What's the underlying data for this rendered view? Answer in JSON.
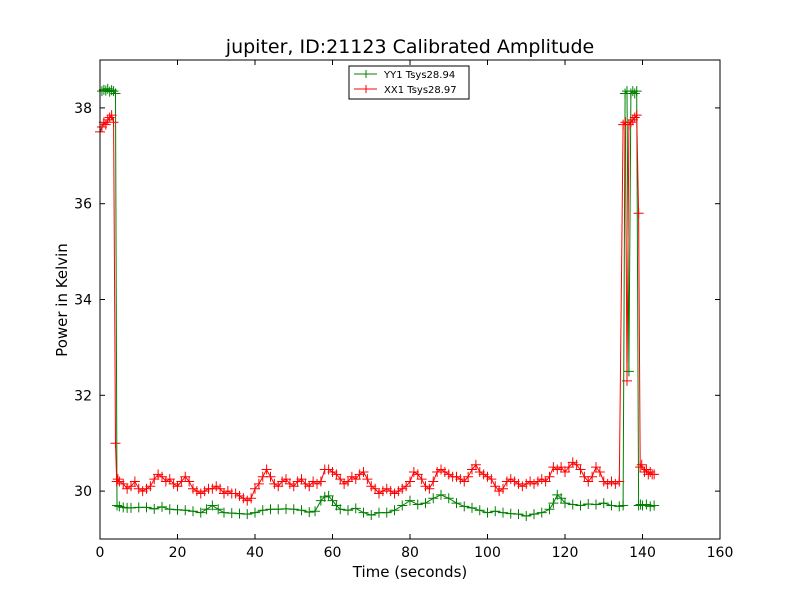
{
  "chart_data": {
    "type": "line",
    "title": "jupiter, ID:21123 Calibrated Amplitude",
    "xlabel": "Time (seconds)",
    "ylabel": "Power in Kelvin",
    "xlim": [
      0,
      160
    ],
    "ylim": [
      29,
      39
    ],
    "xticks": [
      "0",
      "20",
      "40",
      "60",
      "80",
      "100",
      "120",
      "140",
      "160"
    ],
    "yticks": [
      "30",
      "32",
      "34",
      "36",
      "38"
    ],
    "grid": false,
    "legend_position": "top-center",
    "series": [
      {
        "name": "YY1 Tsys28.94",
        "color": "#008000",
        "marker": "+",
        "x": [
          0.5,
          1,
          1.5,
          2,
          2.5,
          3,
          3.5,
          4,
          4.4,
          5,
          6,
          7,
          8,
          10,
          12,
          14,
          16,
          18,
          20,
          22,
          24,
          26,
          27.5,
          29,
          30.5,
          32,
          34,
          36,
          38,
          40,
          42,
          44,
          46,
          48,
          50,
          52,
          54,
          55.5,
          57,
          58,
          59,
          60,
          61,
          62,
          64,
          66,
          68,
          70,
          72,
          74,
          76,
          78,
          80,
          82,
          84,
          86,
          88,
          90,
          92,
          94,
          96,
          98,
          100,
          102,
          104,
          106,
          108,
          110,
          112,
          114,
          116,
          117,
          118,
          119,
          120,
          122,
          124,
          126,
          128,
          130,
          132,
          134,
          135,
          135.5,
          136,
          136.5,
          137,
          137.5,
          138,
          138.5,
          139,
          139.5,
          140,
          141,
          142,
          143
        ],
        "values": [
          38.35,
          38.38,
          38.36,
          38.4,
          38.34,
          38.37,
          38.35,
          38.3,
          29.7,
          29.68,
          29.66,
          29.65,
          29.65,
          29.66,
          29.66,
          29.63,
          29.67,
          29.62,
          29.61,
          29.6,
          29.58,
          29.55,
          29.62,
          29.7,
          29.62,
          29.55,
          29.54,
          29.53,
          29.52,
          29.55,
          29.6,
          29.62,
          29.62,
          29.63,
          29.62,
          29.6,
          29.56,
          29.58,
          29.8,
          29.88,
          29.9,
          29.8,
          29.7,
          29.62,
          29.6,
          29.64,
          29.55,
          29.5,
          29.55,
          29.55,
          29.6,
          29.7,
          29.8,
          29.72,
          29.75,
          29.85,
          29.92,
          29.85,
          29.75,
          29.68,
          29.65,
          29.6,
          29.55,
          29.58,
          29.55,
          29.53,
          29.52,
          29.48,
          29.52,
          29.55,
          29.62,
          29.75,
          29.92,
          29.85,
          29.75,
          29.72,
          29.7,
          29.73,
          29.72,
          29.75,
          29.7,
          29.68,
          29.7,
          38.3,
          38.35,
          32.5,
          38.3,
          38.35,
          38.3,
          38.35,
          29.7,
          29.72,
          29.7,
          29.72,
          29.68,
          29.7
        ]
      },
      {
        "name": "XX1 Tsys28.97",
        "color": "#ff0000",
        "marker": "+",
        "x": [
          0,
          0.5,
          1,
          1.5,
          2,
          2.5,
          3,
          3.5,
          4,
          4.3,
          4.6,
          5,
          6,
          7,
          8,
          9,
          10,
          11,
          12,
          13,
          14,
          15,
          16,
          17,
          18,
          19,
          20,
          21,
          22,
          23,
          24,
          25,
          26,
          27,
          28,
          29,
          30,
          31,
          32,
          33,
          34,
          35,
          36,
          37,
          38,
          39,
          40,
          41,
          42,
          43,
          44,
          45,
          46,
          47,
          48,
          49,
          50,
          51,
          52,
          53,
          54,
          55,
          56,
          57,
          58,
          59,
          60,
          61,
          62,
          63,
          64,
          65,
          66,
          67,
          68,
          69,
          70,
          71,
          72,
          73,
          74,
          75,
          76,
          77,
          78,
          79,
          80,
          81,
          82,
          83,
          84,
          85,
          86,
          87,
          88,
          89,
          90,
          91,
          92,
          93,
          94,
          95,
          96,
          97,
          98,
          99,
          100,
          101,
          102,
          103,
          104,
          105,
          106,
          107,
          108,
          109,
          110,
          111,
          112,
          113,
          114,
          115,
          116,
          117,
          118,
          119,
          120,
          121,
          122,
          123,
          124,
          125,
          126,
          127,
          128,
          129,
          130,
          131,
          132,
          133,
          134,
          135,
          135.6,
          136,
          136.5,
          137,
          137.5,
          138,
          138.5,
          139,
          139.4,
          139.8,
          140.5,
          141,
          141.5,
          142,
          142.5,
          143
        ],
        "values": [
          37.5,
          37.6,
          37.7,
          37.65,
          37.75,
          37.8,
          37.85,
          37.7,
          31.0,
          30.2,
          30.25,
          30.2,
          30.15,
          30.05,
          30.1,
          30.2,
          30.05,
          30.0,
          30.05,
          30.1,
          30.25,
          30.35,
          30.3,
          30.2,
          30.25,
          30.15,
          30.1,
          30.2,
          30.3,
          30.2,
          30.05,
          30.0,
          29.95,
          30.0,
          30.05,
          30.05,
          30.1,
          30.05,
          29.95,
          30.0,
          29.95,
          29.95,
          29.9,
          29.85,
          29.8,
          29.85,
          30.05,
          30.15,
          30.3,
          30.45,
          30.3,
          30.15,
          30.1,
          30.2,
          30.25,
          30.15,
          30.1,
          30.2,
          30.25,
          30.15,
          30.1,
          30.2,
          30.15,
          30.2,
          30.45,
          30.45,
          30.4,
          30.35,
          30.25,
          30.15,
          30.2,
          30.3,
          30.25,
          30.35,
          30.4,
          30.25,
          30.1,
          30.05,
          29.95,
          30.0,
          30.05,
          30.0,
          29.95,
          30.0,
          30.05,
          30.1,
          30.2,
          30.4,
          30.35,
          30.25,
          30.1,
          30.05,
          30.2,
          30.4,
          30.45,
          30.4,
          30.35,
          30.3,
          30.3,
          30.25,
          30.2,
          30.3,
          30.45,
          30.55,
          30.4,
          30.35,
          30.3,
          30.25,
          30.1,
          30.0,
          30.05,
          30.2,
          30.25,
          30.2,
          30.15,
          30.1,
          30.15,
          30.2,
          30.15,
          30.2,
          30.25,
          30.2,
          30.3,
          30.5,
          30.45,
          30.5,
          30.4,
          30.5,
          30.6,
          30.55,
          30.45,
          30.3,
          30.2,
          30.3,
          30.5,
          30.4,
          30.2,
          30.15,
          30.2,
          30.15,
          30.2,
          37.65,
          37.7,
          32.3,
          37.65,
          37.7,
          37.75,
          37.8,
          37.85,
          35.8,
          30.5,
          30.55,
          30.4,
          30.45,
          30.35,
          30.4,
          30.35,
          30.35
        ]
      }
    ]
  }
}
